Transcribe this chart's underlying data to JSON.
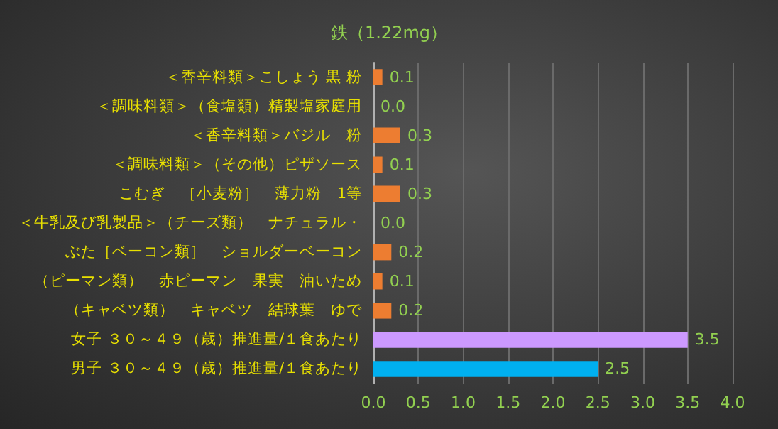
{
  "chart_data": {
    "type": "bar",
    "orientation": "horizontal",
    "title": "鉄（1.22mg）",
    "categories": [
      "＜香辛料類＞こしょう 黒 粉",
      "＜調味料類＞（食塩類）精製塩家庭用",
      "＜香辛料類＞バジル　粉",
      "＜調味料類＞（その他）ピザソース",
      "こむぎ　［小麦粉］　薄力粉　1等",
      "＜牛乳及び乳製品＞（チーズ類）　ナチュラル・",
      "ぶた［ベーコン類］　ショルダーベーコン",
      "（ピーマン類）　赤ピーマン　果実　油いため",
      "（キャベツ類）　キャベツ　結球葉　ゆで",
      "女子 ３０～４９（歳）推進量/１食あたり",
      "男子 ３０～４９（歳）推進量/１食あたり"
    ],
    "values": [
      0.1,
      0,
      0.3,
      0.1,
      0.3,
      0,
      0.2,
      0.1,
      0.2,
      3.5,
      2.5
    ],
    "value_labels": [
      "0.1",
      "0.0",
      "0.3",
      "0.1",
      "0.3",
      "0.0",
      "0.2",
      "0.1",
      "0.2",
      "3.5",
      "2.5"
    ],
    "colors": [
      "#ed7d31",
      "#ed7d31",
      "#ed7d31",
      "#ed7d31",
      "#ed7d31",
      "#ed7d31",
      "#ed7d31",
      "#ed7d31",
      "#ed7d31",
      "#cc99ff",
      "#00b0f0"
    ],
    "xlim": [
      0,
      4
    ],
    "xticks": [
      {
        "value": 0,
        "label": "0.0"
      },
      {
        "value": 0.5,
        "label": "0.5"
      },
      {
        "value": 1,
        "label": "1.0"
      },
      {
        "value": 1.5,
        "label": "1.5"
      },
      {
        "value": 2,
        "label": "2.0"
      },
      {
        "value": 2.5,
        "label": "2.5"
      },
      {
        "value": 3,
        "label": "3.0"
      },
      {
        "value": 3.5,
        "label": "3.5"
      },
      {
        "value": 4,
        "label": "4.0"
      }
    ],
    "grid": "x"
  }
}
